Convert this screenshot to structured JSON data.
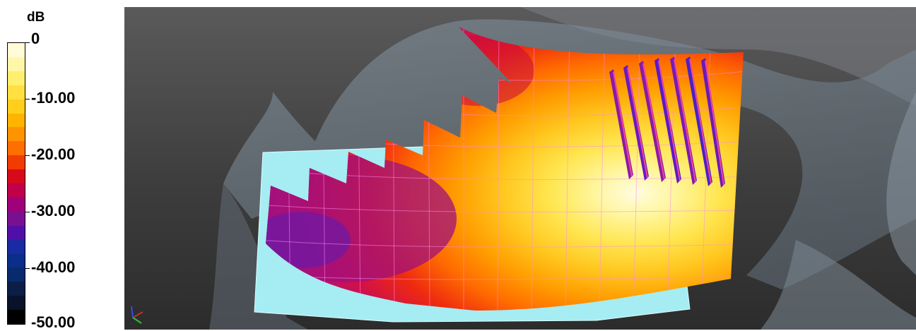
{
  "legend": {
    "unit": "dB",
    "ticks": [
      "0",
      "-10.00",
      "-20.00",
      "-30.00",
      "-40.00",
      "-50.00"
    ],
    "colors": [
      "#fffbd6",
      "#fff7a8",
      "#ffef6e",
      "#ffe040",
      "#ffcf1c",
      "#ffb400",
      "#ff9400",
      "#ff6e00",
      "#f03c00",
      "#d60a1a",
      "#c0004a",
      "#a0007a",
      "#7a1090",
      "#5010a8",
      "#1a2aa0",
      "#0a2e8a",
      "#0a2a6e",
      "#0a1e48",
      "#081228",
      "#000000"
    ]
  },
  "viewport": {
    "background": "#3d3d3d",
    "axis_colors": [
      "#c03030",
      "#30c030",
      "#3050e0"
    ]
  }
}
